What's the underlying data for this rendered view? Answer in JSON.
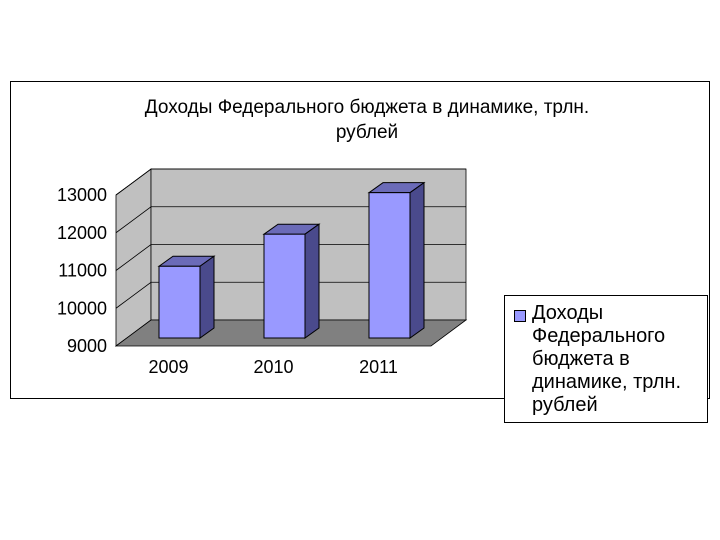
{
  "chart_data": {
    "type": "bar",
    "title": "Доходы Федерального бюджета в динамике, трлн. рублей",
    "title_lines": [
      "Доходы Федерального бюджета в динамике, трлн.",
      "рублей"
    ],
    "categories": [
      "2009",
      "2010",
      "2011"
    ],
    "series": [
      {
        "name": "Доходы Федерального бюджета в динамике, трлн. рублей",
        "values": [
          10900,
          11750,
          12850
        ]
      }
    ],
    "ylim": [
      9000,
      13000
    ],
    "yticks": [
      9000,
      10000,
      11000,
      12000,
      13000
    ],
    "grid": true,
    "legend": "right",
    "is_3d": true,
    "colors": {
      "bar_front": "#9999ff",
      "bar_side": "#4a4a8c",
      "bar_top": "#6b6bb8",
      "wall": "#c0c0c0",
      "floor": "#808080",
      "outline": "#000000"
    }
  }
}
